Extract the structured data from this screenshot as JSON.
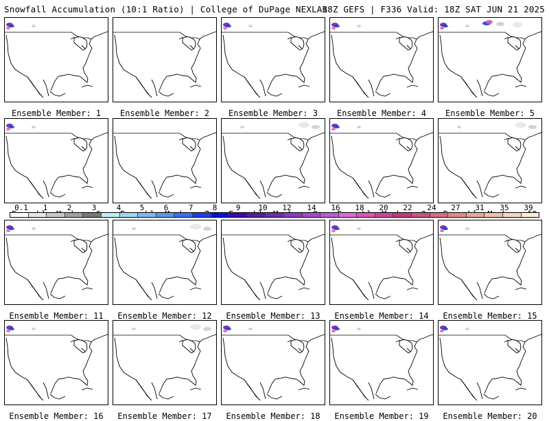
{
  "header": {
    "left_title": "Snowfall Accumulation (10:1 Ratio) | College of DuPage NEXLAB",
    "right_title": "18Z GEFS | F336 Valid: 18Z SAT JUN 21 2025"
  },
  "legend": {
    "ticks": [
      "0.1",
      "1",
      "2",
      "3",
      "4",
      "5",
      "6",
      "7",
      "8",
      "9",
      "10",
      "12",
      "14",
      "16",
      "18",
      "20",
      "22",
      "24",
      "27",
      "31",
      "35",
      "39"
    ],
    "colors": [
      "#ffffff",
      "#e6e6e6",
      "#c8c8c8",
      "#a0a0a0",
      "#787878",
      "#bfeff4",
      "#9fd8f2",
      "#7db8f0",
      "#5d93ee",
      "#3d6dea",
      "#1c3fe6",
      "#0b11d8",
      "#3a0aa8",
      "#52209c",
      "#6d2cae",
      "#8a3cbd",
      "#a24cc8",
      "#bf5cd4",
      "#d86cd8",
      "#d857b6",
      "#cf4696",
      "#c73a7a",
      "#c9567a",
      "#d4707e",
      "#df8a8a",
      "#e8a898",
      "#efc0a8",
      "#f5d8bc",
      "#fbeed8"
    ]
  },
  "panels": [
    {
      "member_label": "Ensemble Member: 1",
      "snow": "west"
    },
    {
      "member_label": "Ensemble Member: 2",
      "snow": "none"
    },
    {
      "member_label": "Ensemble Member: 3",
      "snow": "west"
    },
    {
      "member_label": "Ensemble Member: 4",
      "snow": "west"
    },
    {
      "member_label": "Ensemble Member: 5",
      "snow": "north"
    },
    {
      "member_label": "Ensemble Member: 6",
      "snow": "west"
    },
    {
      "member_label": "Ensemble Member: 7",
      "snow": "none"
    },
    {
      "member_label": "Ensemble Member: 8",
      "snow": "light"
    },
    {
      "member_label": "Ensemble Member: 9",
      "snow": "west"
    },
    {
      "member_label": "Ensemble Member: 10",
      "snow": "light"
    },
    {
      "member_label": "Ensemble Member: 11",
      "snow": "west"
    },
    {
      "member_label": "Ensemble Member: 12",
      "snow": "light"
    },
    {
      "member_label": "Ensemble Member: 13",
      "snow": "none"
    },
    {
      "member_label": "Ensemble Member: 14",
      "snow": "west"
    },
    {
      "member_label": "Ensemble Member: 15",
      "snow": "west"
    },
    {
      "member_label": "Ensemble Member: 16",
      "snow": "west"
    },
    {
      "member_label": "Ensemble Member: 17",
      "snow": "light"
    },
    {
      "member_label": "Ensemble Member: 18",
      "snow": "west"
    },
    {
      "member_label": "Ensemble Member: 19",
      "snow": "west"
    },
    {
      "member_label": "Ensemble Member: 20",
      "snow": "west"
    }
  ]
}
